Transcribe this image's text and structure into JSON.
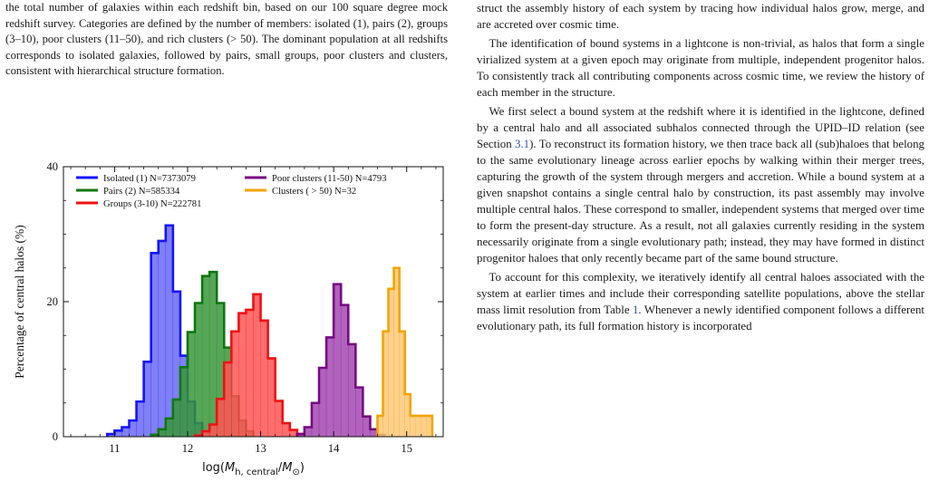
{
  "caption": {
    "text": "the total number of galaxies within each redshift bin, based on our 100 square degree mock redshift survey. Categories are defined by the number of members: isolated (1), pairs (2), groups (3–10), poor clusters (11–50), and rich clusters (> 50). The dominant population at all redshifts corresponds to isolated galaxies, followed by pairs, small groups, poor clusters and clusters, consistent with hierarchical structure formation."
  },
  "body": {
    "p1": "struct the assembly history of each system by tracing how individual halos grow, merge, and are accreted over cosmic time.",
    "p2": "The identification of bound systems in a lightcone is non-trivial, as halos that form a single virialized system at a given epoch may originate from multiple, independent progenitor halos. To consistently track all contributing components across cosmic time, we review the history of each member in the structure.",
    "p3_before": "We first select a bound system at the redshift where it is identified in the lightcone, defined by a central halo and all associated subhalos connected through the UPID–ID relation (see Section ",
    "p3_ref": "3.1",
    "p3_after": "). To reconstruct its formation history, we then trace back all (sub)haloes that belong to the same evolutionary lineage across earlier epochs by walking within their merger trees, capturing the growth of the system through mergers and accretion. While a bound system at a given snapshot contains a single central halo by construction, its past assembly may involve multiple central halos. These correspond to smaller, independent systems that merged over time to form the present-day structure. As a result, not all galaxies currently residing in the system necessarily originate from a single evolutionary path; instead, they may have formed in distinct progenitor haloes that only recently became part of the same bound structure.",
    "p4_before": "To account for this complexity, we iteratively identify all central haloes associated with the system at earlier times and include their corresponding satellite populations, above the stellar mass limit resolution from Table ",
    "p4_ref": "1",
    "p4_after": ". Whenever a newly identified component follows a different evolutionary path, its full formation history is incorporated"
  },
  "chart_data": {
    "type": "area",
    "xlabel": "log(M_h,central/M_⊙)",
    "ylabel": "Percentage of central halos (%)",
    "xlim": [
      10.3,
      15.5
    ],
    "ylim": [
      0,
      40
    ],
    "xticks": [
      11,
      12,
      13,
      14,
      15
    ],
    "yticks": [
      0,
      20,
      40
    ],
    "legend_position": "top",
    "series": [
      {
        "name": "Isolated (1) N=7373079",
        "color": "#1414ff",
        "fill": "#6868f5",
        "x_start": 10.9,
        "bin_width": 0.1,
        "values": [
          0.4,
          0.9,
          1.4,
          2.4,
          5.2,
          11.1,
          27.2,
          29.0,
          31.3,
          21.5,
          12.0,
          5.2,
          2.0,
          0.8
        ]
      },
      {
        "name": "Pairs (2) N=585334",
        "color": "#0e780e",
        "fill": "#3a963a",
        "x_start": 11.5,
        "bin_width": 0.1,
        "values": [
          0.3,
          1.1,
          2.7,
          5.5,
          10.3,
          15.5,
          19.8,
          23.8,
          24.4,
          19.8,
          13.2,
          6.0,
          2.4,
          0.8
        ]
      },
      {
        "name": "Groups (3-10) N=222781",
        "color": "#ee1212",
        "fill": "#ff5555",
        "x_start": 12.1,
        "bin_width": 0.1,
        "values": [
          0.2,
          0.8,
          1.8,
          5.6,
          11.0,
          15.6,
          18.3,
          18.8,
          21.1,
          17.2,
          11.6,
          5.3,
          2.0,
          1.0,
          0.4
        ]
      },
      {
        "name": "Poor clusters (11-50) N=4793",
        "color": "#770a82",
        "fill": "#a248b0",
        "x_start": 13.5,
        "bin_width": 0.1,
        "values": [
          0.4,
          1.4,
          5.0,
          10.2,
          14.7,
          22.6,
          19.5,
          13.7,
          7.3,
          3.0,
          1.1,
          0.3
        ]
      },
      {
        "name": "Clusters ( > 50) N=32",
        "color": "#f5a400",
        "fill": "#fcc878",
        "x_start": 14.6,
        "bin_width": 0.075,
        "values": [
          3.1,
          15.6,
          21.9,
          25.0,
          15.6,
          6.3,
          3.1,
          3.1,
          3.1,
          3.1
        ]
      }
    ]
  }
}
